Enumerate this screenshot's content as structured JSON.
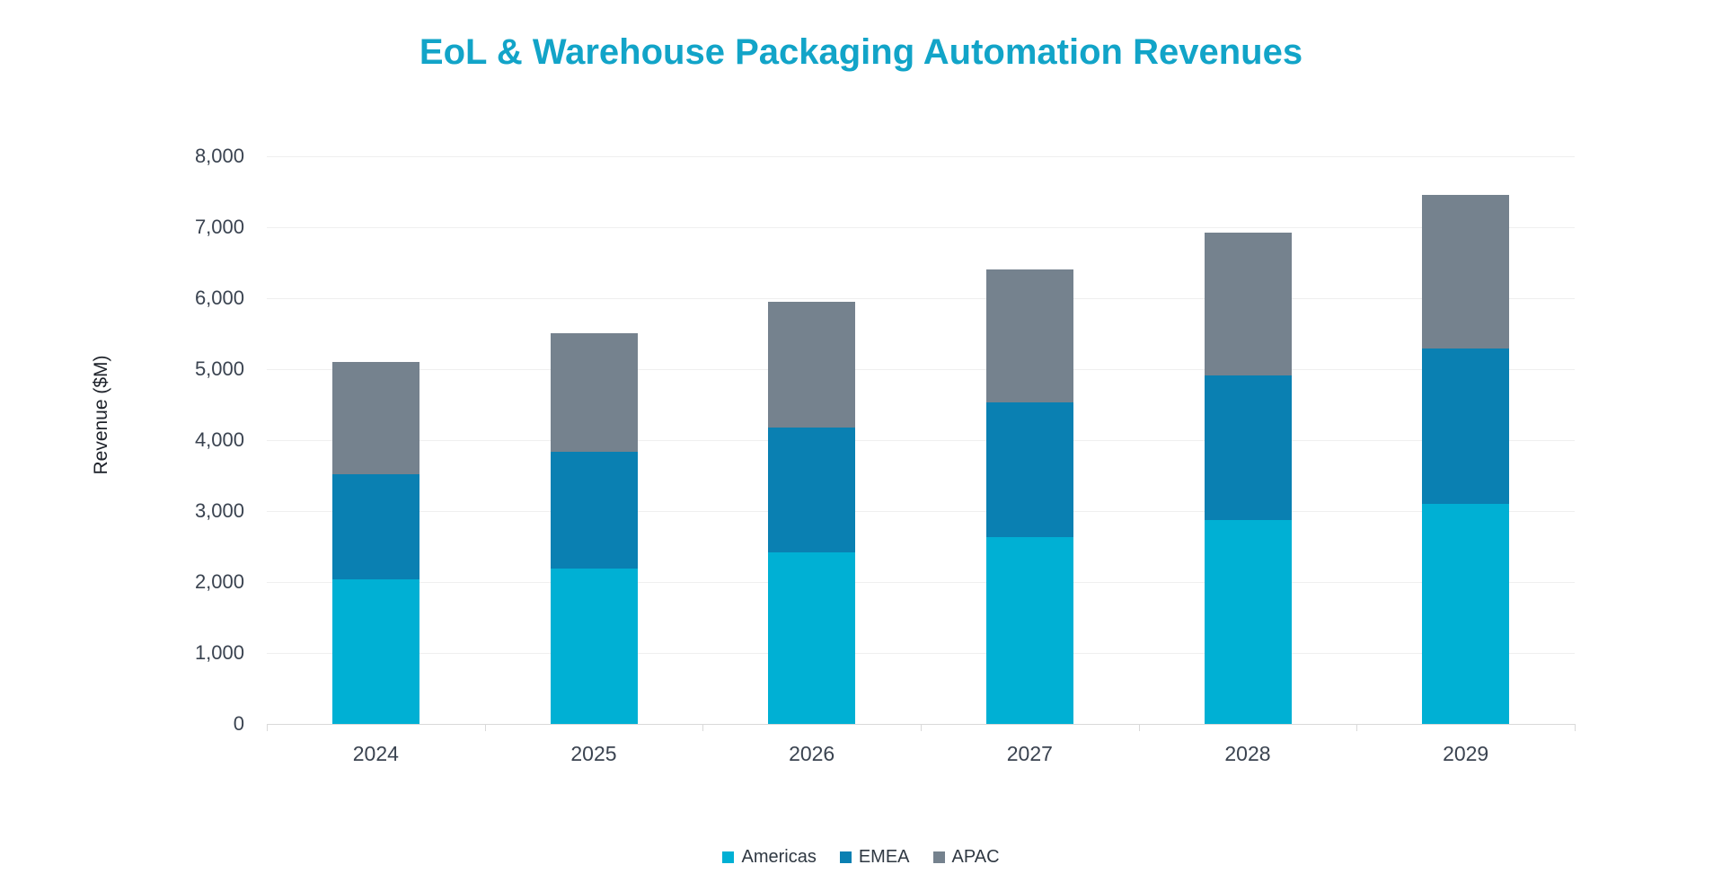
{
  "title": "EoL & Warehouse Packaging Automation Revenues",
  "chart_data": {
    "type": "bar",
    "stacked": true,
    "title": "EoL & Warehouse Packaging Automation Revenues",
    "xlabel": "",
    "ylabel": "Revenue ($M)",
    "categories": [
      "2024",
      "2025",
      "2026",
      "2027",
      "2028",
      "2029"
    ],
    "series": [
      {
        "name": "Americas",
        "color": "#00B0D4",
        "values": [
          2040,
          2190,
          2420,
          2630,
          2870,
          3100
        ]
      },
      {
        "name": "EMEA",
        "color": "#0A80B2",
        "values": [
          1480,
          1650,
          1760,
          1900,
          2040,
          2190
        ]
      },
      {
        "name": "APAC",
        "color": "#75828E",
        "values": [
          1580,
          1670,
          1770,
          1870,
          2020,
          2170
        ]
      }
    ],
    "ylim": [
      0,
      8000
    ],
    "ytick_step": 1000,
    "grid": "horizontal",
    "legend_position": "bottom"
  },
  "colors": {
    "title": "#12A4C8",
    "axis_text": "#3A4350",
    "gridline": "#EFEFEF",
    "axis_line": "#D9D9D9"
  }
}
